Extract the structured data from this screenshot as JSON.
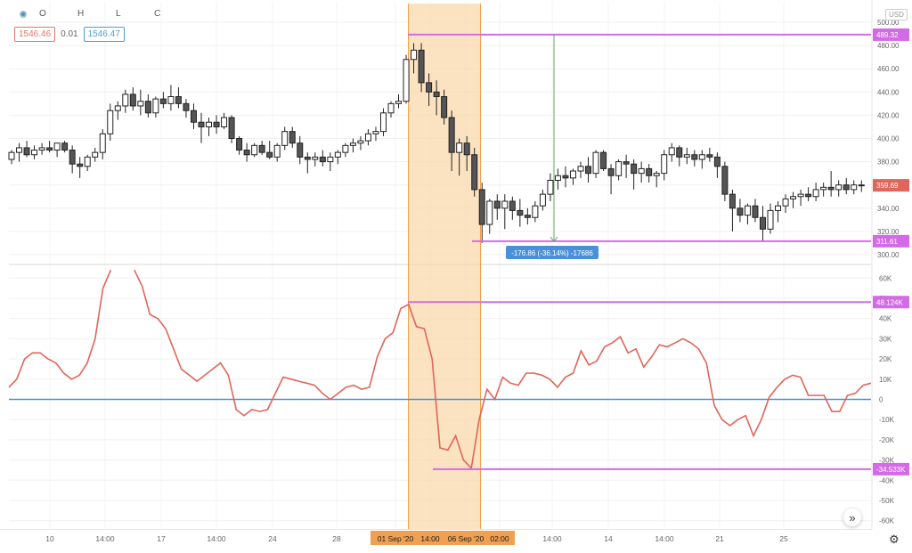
{
  "legend": {
    "o_label": "O",
    "h_label": "H",
    "l_label": "L",
    "c_label": "C",
    "value1": "1546.46",
    "value2": "0.01",
    "value3": "1546.47"
  },
  "currency": "USD",
  "icons": {
    "legend_dot": "circle-dot-icon",
    "forward": "double-chevron-right-icon",
    "settings": "gear-icon"
  },
  "forward_glyph": "»",
  "settings_glyph": "⚙",
  "colors": {
    "candle": "#222222",
    "osc_line": "#e0655a",
    "zero_line": "#4a90d9",
    "range_fill": "#f9d5a7",
    "range_border": "#f0a050",
    "marker": "#d36be6",
    "last_price": "#e0655a",
    "measure_line": "#6aa36a",
    "measure_label": "#4a90d9"
  },
  "x_ticks": [
    "10",
    "14:00",
    "17",
    "14:00",
    "24",
    "28",
    "01 Sep '20",
    "14:00",
    "06 Sep '20",
    "02:00",
    "14:00",
    "14",
    "14:00",
    "21",
    "25"
  ],
  "price_axis": {
    "ticks": [
      "500.00",
      "480.00",
      "460.00",
      "440.00",
      "420.00",
      "400.00",
      "380.00",
      "360.00",
      "340.00",
      "320.00",
      "300.00"
    ],
    "labels": {
      "top": "489.32",
      "bottom": "311.61",
      "last": "359.69"
    }
  },
  "osc_axis": {
    "ticks": [
      "60K",
      "50K",
      "40K",
      "30K",
      "20K",
      "10K",
      "0",
      "-10K",
      "-20K",
      "-30K",
      "-40K",
      "-50K",
      "-60K"
    ],
    "labels": {
      "top": "48.124K",
      "bottom": "-34.533K"
    }
  },
  "measure": {
    "text": "-176.86 (-36.14%) -17686"
  },
  "chart_data": [
    {
      "type": "candlestick",
      "title": "",
      "currency": "USD",
      "ylim": [
        300,
        500
      ],
      "last": 359.69,
      "candles": [
        [
          382,
          390,
          378,
          388
        ],
        [
          388,
          396,
          380,
          392
        ],
        [
          392,
          398,
          384,
          386
        ],
        [
          386,
          394,
          382,
          390
        ],
        [
          390,
          396,
          386,
          392
        ],
        [
          392,
          398,
          388,
          390
        ],
        [
          390,
          396,
          384,
          396
        ],
        [
          396,
          398,
          388,
          390
        ],
        [
          390,
          394,
          370,
          378
        ],
        [
          378,
          384,
          366,
          376
        ],
        [
          376,
          386,
          372,
          384
        ],
        [
          384,
          392,
          380,
          388
        ],
        [
          388,
          408,
          382,
          404
        ],
        [
          404,
          430,
          398,
          424
        ],
        [
          424,
          432,
          416,
          428
        ],
        [
          428,
          442,
          422,
          438
        ],
        [
          438,
          444,
          424,
          428
        ],
        [
          428,
          442,
          420,
          432
        ],
        [
          432,
          438,
          418,
          422
        ],
        [
          422,
          436,
          418,
          434
        ],
        [
          434,
          440,
          426,
          430
        ],
        [
          430,
          446,
          424,
          436
        ],
        [
          436,
          444,
          426,
          430
        ],
        [
          430,
          434,
          418,
          424
        ],
        [
          424,
          430,
          408,
          414
        ],
        [
          414,
          422,
          396,
          410
        ],
        [
          410,
          418,
          402,
          414
        ],
        [
          414,
          420,
          404,
          410
        ],
        [
          410,
          422,
          408,
          418
        ],
        [
          418,
          420,
          396,
          400
        ],
        [
          400,
          402,
          386,
          390
        ],
        [
          390,
          396,
          380,
          386
        ],
        [
          386,
          396,
          384,
          394
        ],
        [
          394,
          398,
          386,
          388
        ],
        [
          388,
          398,
          382,
          384
        ],
        [
          384,
          396,
          380,
          394
        ],
        [
          394,
          410,
          390,
          406
        ],
        [
          406,
          410,
          392,
          396
        ],
        [
          396,
          402,
          378,
          384
        ],
        [
          384,
          388,
          370,
          382
        ],
        [
          382,
          388,
          376,
          384
        ],
        [
          384,
          390,
          376,
          380
        ],
        [
          380,
          388,
          372,
          384
        ],
        [
          384,
          390,
          378,
          388
        ],
        [
          388,
          396,
          384,
          394
        ],
        [
          394,
          400,
          388,
          396
        ],
        [
          396,
          402,
          390,
          398
        ],
        [
          398,
          408,
          394,
          404
        ],
        [
          404,
          410,
          398,
          406
        ],
        [
          406,
          426,
          402,
          422
        ],
        [
          422,
          432,
          418,
          430
        ],
        [
          430,
          438,
          426,
          432
        ],
        [
          432,
          472,
          430,
          468
        ],
        [
          468,
          482,
          456,
          476
        ],
        [
          476,
          482,
          440,
          448
        ],
        [
          448,
          456,
          428,
          440
        ],
        [
          440,
          450,
          420,
          436
        ],
        [
          436,
          442,
          412,
          418
        ],
        [
          418,
          424,
          372,
          388
        ],
        [
          388,
          400,
          368,
          396
        ],
        [
          396,
          402,
          372,
          386
        ],
        [
          386,
          392,
          350,
          356
        ],
        [
          356,
          362,
          310,
          326
        ],
        [
          326,
          348,
          318,
          346
        ],
        [
          346,
          352,
          330,
          340
        ],
        [
          340,
          352,
          322,
          346
        ],
        [
          346,
          350,
          330,
          338
        ],
        [
          338,
          348,
          324,
          334
        ],
        [
          334,
          340,
          326,
          332
        ],
        [
          332,
          346,
          328,
          342
        ],
        [
          342,
          356,
          338,
          352
        ],
        [
          352,
          370,
          346,
          364
        ],
        [
          364,
          374,
          356,
          368
        ],
        [
          368,
          376,
          358,
          366
        ],
        [
          366,
          374,
          360,
          372
        ],
        [
          372,
          380,
          366,
          376
        ],
        [
          376,
          384,
          362,
          370
        ],
        [
          370,
          390,
          366,
          388
        ],
        [
          388,
          390,
          372,
          374
        ],
        [
          374,
          378,
          352,
          368
        ],
        [
          368,
          382,
          364,
          380
        ],
        [
          380,
          386,
          366,
          378
        ],
        [
          378,
          382,
          356,
          370
        ],
        [
          370,
          380,
          362,
          374
        ],
        [
          374,
          378,
          362,
          368
        ],
        [
          368,
          372,
          358,
          370
        ],
        [
          370,
          390,
          364,
          386
        ],
        [
          386,
          396,
          380,
          392
        ],
        [
          392,
          394,
          376,
          384
        ],
        [
          384,
          392,
          378,
          386
        ],
        [
          386,
          390,
          376,
          382
        ],
        [
          382,
          390,
          374,
          386
        ],
        [
          386,
          392,
          380,
          384
        ],
        [
          384,
          388,
          366,
          376
        ],
        [
          376,
          380,
          346,
          352
        ],
        [
          352,
          356,
          320,
          340
        ],
        [
          340,
          348,
          328,
          334
        ],
        [
          334,
          344,
          326,
          342
        ],
        [
          342,
          348,
          328,
          332
        ],
        [
          332,
          342,
          312,
          322
        ],
        [
          322,
          344,
          318,
          338
        ],
        [
          338,
          346,
          328,
          342
        ],
        [
          342,
          352,
          336,
          348
        ],
        [
          348,
          354,
          340,
          350
        ],
        [
          350,
          356,
          342,
          352
        ],
        [
          352,
          358,
          346,
          350
        ],
        [
          350,
          362,
          346,
          356
        ],
        [
          356,
          362,
          350,
          358
        ],
        [
          358,
          372,
          350,
          356
        ],
        [
          356,
          364,
          350,
          360
        ],
        [
          360,
          366,
          352,
          356
        ],
        [
          356,
          364,
          352,
          360
        ],
        [
          360,
          364,
          354,
          359.69
        ]
      ]
    },
    {
      "type": "line",
      "title": "",
      "ylim": [
        -60000,
        60000
      ],
      "zero_line": 0,
      "series": [
        {
          "name": "",
          "values": [
            6000,
            10000,
            20000,
            23000,
            23000,
            20000,
            18000,
            13000,
            10000,
            12000,
            18000,
            30000,
            55000,
            64000,
            null,
            null,
            64000,
            56000,
            42000,
            40000,
            35000,
            25000,
            15000,
            12000,
            9000,
            12000,
            15000,
            18000,
            12000,
            -5000,
            -8000,
            -5000,
            -6000,
            -5000,
            3000,
            11000,
            10000,
            9000,
            8000,
            7000,
            3000,
            0,
            3000,
            6000,
            7000,
            5000,
            6000,
            21000,
            30000,
            33000,
            45000,
            47000,
            36000,
            35000,
            20000,
            -24000,
            -25000,
            -18000,
            -30000,
            -34000,
            -10000,
            5000,
            0,
            11000,
            8000,
            7000,
            13000,
            13000,
            12000,
            10000,
            6000,
            11000,
            13000,
            24000,
            17000,
            19000,
            26000,
            28000,
            31000,
            23000,
            25000,
            16000,
            21000,
            27000,
            26000,
            28000,
            30000,
            28000,
            25000,
            18000,
            -3000,
            -10000,
            -13000,
            -10000,
            -8000,
            -18000,
            -10000,
            1000,
            6000,
            10000,
            12000,
            11000,
            2000,
            2000,
            2000,
            -6000,
            -6000,
            2000,
            3000,
            7000,
            8000
          ]
        }
      ]
    }
  ]
}
